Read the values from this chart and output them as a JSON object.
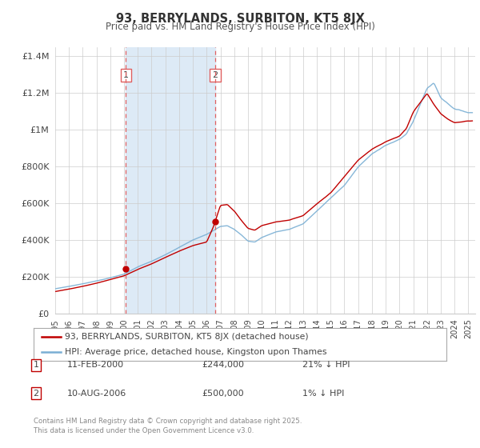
{
  "title": "93, BERRYLANDS, SURBITON, KT5 8JX",
  "subtitle": "Price paid vs. HM Land Registry's House Price Index (HPI)",
  "legend_line1": "93, BERRYLANDS, SURBITON, KT5 8JX (detached house)",
  "legend_line2": "HPI: Average price, detached house, Kingston upon Thames",
  "transaction1_date": "11-FEB-2000",
  "transaction1_price": "£244,000",
  "transaction1_hpi": "21% ↓ HPI",
  "transaction1_year": 2000.12,
  "transaction1_value": 244000,
  "transaction2_date": "10-AUG-2006",
  "transaction2_price": "£500,000",
  "transaction2_hpi": "1% ↓ HPI",
  "transaction2_year": 2006.62,
  "transaction2_value": 500000,
  "hpi_color": "#7aafd4",
  "price_color": "#c00000",
  "vline_color": "#e06060",
  "shade_color": "#ddeaf6",
  "background_color": "#ffffff",
  "grid_color": "#cccccc",
  "title_color": "#333333",
  "subtitle_color": "#555555",
  "text_color": "#444444",
  "footer_color": "#888888",
  "footer_text": "Contains HM Land Registry data © Crown copyright and database right 2025.\nThis data is licensed under the Open Government Licence v3.0.",
  "ylim": [
    0,
    1450000
  ],
  "yticks": [
    0,
    200000,
    400000,
    600000,
    800000,
    1000000,
    1200000,
    1400000
  ],
  "ytick_labels": [
    "£0",
    "£200K",
    "£400K",
    "£600K",
    "£800K",
    "£1M",
    "£1.2M",
    "£1.4M"
  ],
  "xmin": 1995.0,
  "xmax": 2025.5,
  "hpi_key_times": [
    1995,
    1996,
    1997,
    1998,
    1999,
    2000,
    2001,
    2002,
    2003,
    2004,
    2005,
    2006,
    2007,
    2007.5,
    2008,
    2008.5,
    2009,
    2009.5,
    2010,
    2011,
    2012,
    2013,
    2014,
    2015,
    2016,
    2017,
    2018,
    2019,
    2020,
    2020.5,
    2021,
    2022,
    2022.5,
    2023,
    2023.5,
    2024,
    2025
  ],
  "hpi_key_vals": [
    135000,
    148000,
    162000,
    178000,
    195000,
    215000,
    255000,
    285000,
    320000,
    360000,
    400000,
    430000,
    475000,
    480000,
    460000,
    430000,
    395000,
    390000,
    415000,
    445000,
    460000,
    490000,
    560000,
    630000,
    700000,
    800000,
    870000,
    920000,
    950000,
    980000,
    1050000,
    1230000,
    1260000,
    1180000,
    1150000,
    1120000,
    1100000
  ],
  "price_key_times": [
    1995,
    1996,
    1997,
    1998,
    1999,
    2000,
    2001,
    2002,
    2003,
    2004,
    2005,
    2006,
    2006.5,
    2007,
    2007.5,
    2008,
    2008.5,
    2009,
    2009.5,
    2010,
    2011,
    2012,
    2013,
    2014,
    2015,
    2016,
    2017,
    2018,
    2019,
    2020,
    2020.5,
    2021,
    2022,
    2022.5,
    2023,
    2023.5,
    2024,
    2025
  ],
  "price_key_vals": [
    120000,
    133000,
    148000,
    165000,
    185000,
    205000,
    240000,
    270000,
    305000,
    340000,
    370000,
    390000,
    475000,
    590000,
    595000,
    560000,
    510000,
    465000,
    455000,
    480000,
    500000,
    510000,
    535000,
    600000,
    660000,
    750000,
    840000,
    900000,
    940000,
    970000,
    1010000,
    1100000,
    1200000,
    1140000,
    1090000,
    1060000,
    1040000,
    1050000
  ]
}
